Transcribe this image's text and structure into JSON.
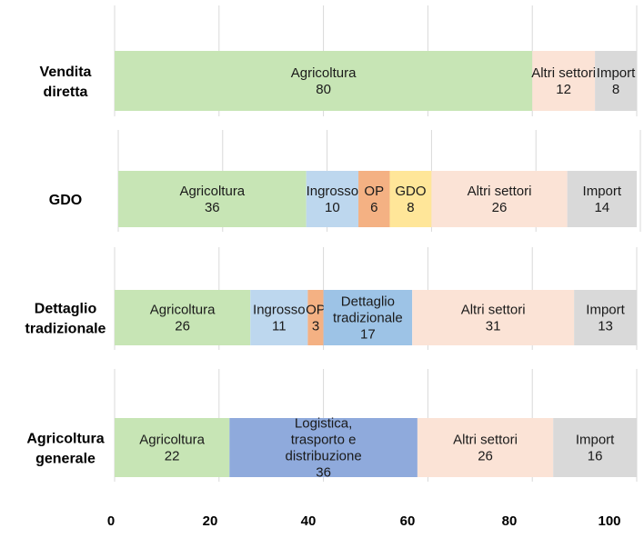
{
  "chart_data": {
    "type": "bar",
    "orientation": "horizontal",
    "stacked": true,
    "xlim": [
      0,
      100
    ],
    "xticks": [
      "0",
      "20",
      "40",
      "60",
      "80",
      "100"
    ],
    "rows": [
      {
        "label": [
          "Vendita",
          "diretta"
        ],
        "segments": [
          {
            "name": [
              "Agricoltura"
            ],
            "value": 80,
            "color": "#c7e5b5"
          },
          {
            "name": [
              "Altri settori"
            ],
            "value": 12,
            "color": "#fbe3d6"
          },
          {
            "name": [
              "Import"
            ],
            "value": 8,
            "color": "#d9d9d9"
          }
        ]
      },
      {
        "label": [
          "GDO"
        ],
        "segments": [
          {
            "name": [
              "Agricoltura"
            ],
            "value": 36,
            "color": "#c7e5b5"
          },
          {
            "name": [
              "Ingrosso"
            ],
            "value": 10,
            "color": "#bdd7ee"
          },
          {
            "name": [
              "OP"
            ],
            "value": 6,
            "color": "#f4b183"
          },
          {
            "name": [
              "GDO"
            ],
            "value": 8,
            "color": "#ffe699"
          },
          {
            "name": [
              "Altri settori"
            ],
            "value": 26,
            "color": "#fbe3d6"
          },
          {
            "name": [
              "Import"
            ],
            "value": 14,
            "color": "#d9d9d9"
          }
        ]
      },
      {
        "label": [
          "Dettaglio",
          "tradizionale"
        ],
        "segments": [
          {
            "name": [
              "Agricoltura"
            ],
            "value": 26,
            "color": "#c7e5b5"
          },
          {
            "name": [
              "Ingrosso"
            ],
            "value": 11,
            "color": "#bdd7ee"
          },
          {
            "name": [
              "OP"
            ],
            "value": 3,
            "color": "#f4b183"
          },
          {
            "name": [
              "Dettaglio",
              "tradizionale"
            ],
            "value": 17,
            "color": "#9dc3e6"
          },
          {
            "name": [
              "Altri settori"
            ],
            "value": 31,
            "color": "#fbe3d6"
          },
          {
            "name": [
              "Import"
            ],
            "value": 13,
            "color": "#d9d9d9"
          }
        ]
      },
      {
        "label": [
          "Agricoltura",
          "generale"
        ],
        "segments": [
          {
            "name": [
              "Agricoltura"
            ],
            "value": 22,
            "color": "#c7e5b5"
          },
          {
            "name": [
              "Logistica,",
              "trasporto e",
              "distribuzione"
            ],
            "value": 36,
            "color": "#8faadc"
          },
          {
            "name": [
              "Altri settori"
            ],
            "value": 26,
            "color": "#fbe3d6"
          },
          {
            "name": [
              "Import"
            ],
            "value": 16,
            "color": "#d9d9d9"
          }
        ]
      }
    ],
    "gridlines": true,
    "gridline_color": "#d9d9d9",
    "title": "",
    "xlabel": "",
    "ylabel": ""
  }
}
